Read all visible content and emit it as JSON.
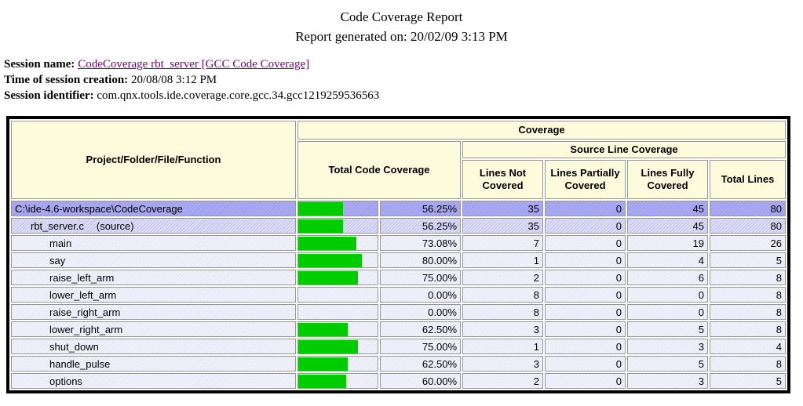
{
  "report": {
    "title": "Code Coverage Report",
    "generated": "Report generated on: 20/02/09 3:13 PM"
  },
  "session": {
    "name_label": "Session name:",
    "name_link": "CodeCoverage rbt_server [GCC Code Coverage]",
    "creation_label": "Time of session creation:",
    "creation_value": "20/08/08 3:12 PM",
    "identifier_label": "Session identifier:",
    "identifier_value": "com.qnx.tools.ide.coverage.core.gcc.34.gcc1219259536563"
  },
  "table": {
    "headers": {
      "function_col": "Project/Folder/File/Function",
      "coverage": "Coverage",
      "total_code_coverage": "Total Code Coverage",
      "source_line_coverage": "Source Line Coverage",
      "lines_not_covered": "Lines Not Covered",
      "lines_partially_covered": "Lines Partially Covered",
      "lines_fully_covered": "Lines Fully Covered",
      "total_lines": "Total Lines"
    },
    "rows": [
      {
        "name": "C:\\ide-4.6-workspace\\CodeCoverage",
        "suffix": "",
        "level": 0,
        "percent": 56.25,
        "percent_label": "56.25%",
        "lines_not_covered": 35,
        "lines_partially_covered": 0,
        "lines_fully_covered": 45,
        "total_lines": 80
      },
      {
        "name": "rbt_server.c",
        "suffix": "(source)",
        "level": 1,
        "percent": 56.25,
        "percent_label": "56.25%",
        "lines_not_covered": 35,
        "lines_partially_covered": 0,
        "lines_fully_covered": 45,
        "total_lines": 80
      },
      {
        "name": "main",
        "suffix": "",
        "level": 2,
        "percent": 73.08,
        "percent_label": "73.08%",
        "lines_not_covered": 7,
        "lines_partially_covered": 0,
        "lines_fully_covered": 19,
        "total_lines": 26
      },
      {
        "name": "say",
        "suffix": "",
        "level": 2,
        "percent": 80.0,
        "percent_label": "80.00%",
        "lines_not_covered": 1,
        "lines_partially_covered": 0,
        "lines_fully_covered": 4,
        "total_lines": 5
      },
      {
        "name": "raise_left_arm",
        "suffix": "",
        "level": 2,
        "percent": 75.0,
        "percent_label": "75.00%",
        "lines_not_covered": 2,
        "lines_partially_covered": 0,
        "lines_fully_covered": 6,
        "total_lines": 8
      },
      {
        "name": "lower_left_arm",
        "suffix": "",
        "level": 2,
        "percent": 0.0,
        "percent_label": "0.00%",
        "lines_not_covered": 8,
        "lines_partially_covered": 0,
        "lines_fully_covered": 0,
        "total_lines": 8
      },
      {
        "name": "raise_right_arm",
        "suffix": "",
        "level": 2,
        "percent": 0.0,
        "percent_label": "0.00%",
        "lines_not_covered": 8,
        "lines_partially_covered": 0,
        "lines_fully_covered": 0,
        "total_lines": 8
      },
      {
        "name": "lower_right_arm",
        "suffix": "",
        "level": 2,
        "percent": 62.5,
        "percent_label": "62.50%",
        "lines_not_covered": 3,
        "lines_partially_covered": 0,
        "lines_fully_covered": 5,
        "total_lines": 8
      },
      {
        "name": "shut_down",
        "suffix": "",
        "level": 2,
        "percent": 75.0,
        "percent_label": "75.00%",
        "lines_not_covered": 1,
        "lines_partially_covered": 0,
        "lines_fully_covered": 3,
        "total_lines": 4
      },
      {
        "name": "handle_pulse",
        "suffix": "",
        "level": 2,
        "percent": 62.5,
        "percent_label": "62.50%",
        "lines_not_covered": 3,
        "lines_partially_covered": 0,
        "lines_fully_covered": 5,
        "total_lines": 8
      },
      {
        "name": "options",
        "suffix": "",
        "level": 2,
        "percent": 60.0,
        "percent_label": "60.00%",
        "lines_not_covered": 2,
        "lines_partially_covered": 0,
        "lines_fully_covered": 3,
        "total_lines": 5
      }
    ]
  },
  "colors": {
    "header_bg": "#FCFCDC",
    "project_row_bg": "#A0A0F0",
    "file_row_bg": "#CACAF2",
    "function_row_bg": "#E9E9F8",
    "bar_green": "#00CC00",
    "cell_border": "#979797",
    "outer_border": "#000000",
    "link": "#800080"
  }
}
